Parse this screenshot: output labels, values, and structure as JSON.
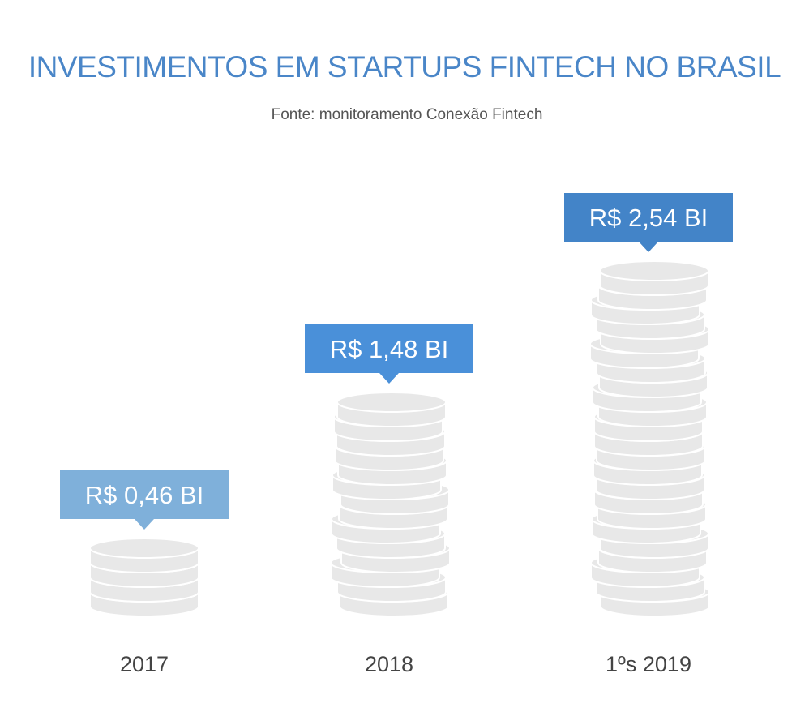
{
  "title": "INVESTIMENTOS EM STARTUPS FINTECH NO BRASIL",
  "subtitle": "Fonte: monitoramento Conexão Fintech",
  "chart_data": {
    "type": "bar",
    "title": "INVESTIMENTOS EM STARTUPS FINTECH NO BRASIL",
    "subtitle": "Fonte: monitoramento Conexão Fintech",
    "categories": [
      "2017",
      "2018",
      "1ºs 2019"
    ],
    "values": [
      0.46,
      1.48,
      2.54
    ],
    "value_labels": [
      "R$ 0,46 BI",
      "R$ 1,48 BI",
      "R$ 2,54 BI"
    ],
    "unit": "R$ bilhões",
    "grid": false,
    "legend": "none",
    "colors": {
      "coin_fill": "#e8e8e8",
      "coin_stroke": "#ffffff",
      "label_boxes": [
        "#7fb0da",
        "#4a90d9",
        "#4384c8"
      ],
      "title": "#4a86c8",
      "axis_text": "#444444"
    }
  }
}
